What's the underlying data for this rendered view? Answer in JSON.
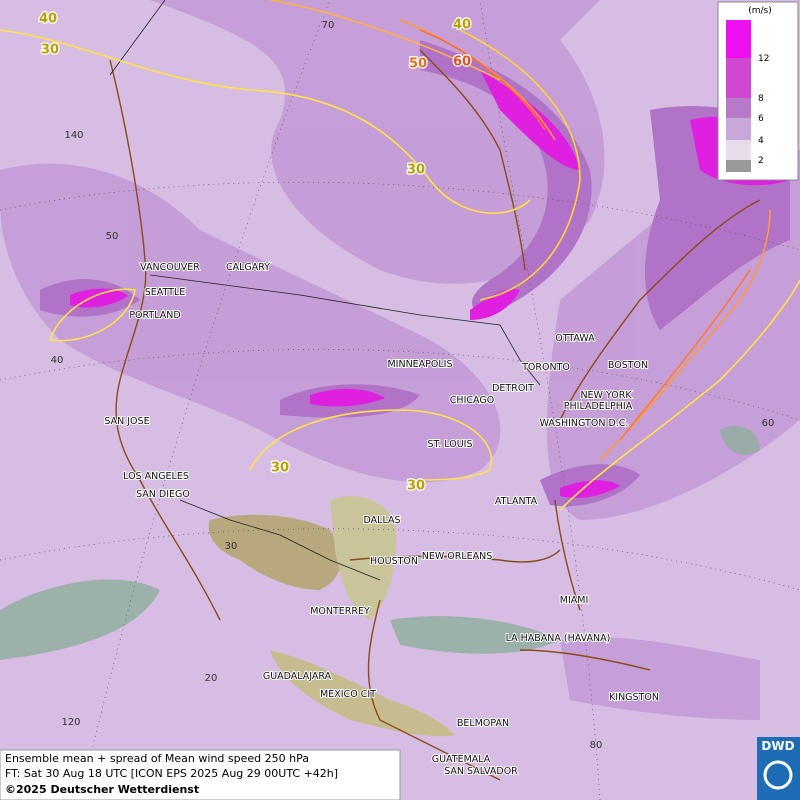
{
  "legend": {
    "unit": "(m/s)",
    "levels": [
      "12",
      "8",
      "6",
      "4",
      "2"
    ]
  },
  "cities": [
    "VANCOUVER",
    "CALGARY",
    "SEATTLE",
    "PORTLAND",
    "MINNEAPOLIS",
    "OTTAWA",
    "TORONTO",
    "DETROIT",
    "BOSTON",
    "CHICAGO",
    "NEW YORK",
    "PHILADELPHIA",
    "WASHINGTON D.C.",
    "SAN JOSE",
    "ST. LOUIS",
    "LOS ANGELES",
    "SAN DIEGO",
    "ATLANTA",
    "DALLAS",
    "HOUSTON",
    "NEW ORLEANS",
    "MONTERREY",
    "MIAMI",
    "LA HABANA (HAVANA)",
    "GUADALAJARA",
    "MEXICO CIT",
    "KINGSTON",
    "BELMOPAN",
    "GUATEMALA",
    "SAN SALVADOR"
  ],
  "contour_labels": [
    "40",
    "30",
    "40",
    "50",
    "60",
    "30",
    "30",
    "30"
  ],
  "graticule_labels": [
    "70",
    "140",
    "50",
    "40",
    "60",
    "30",
    "20",
    "120",
    "80"
  ],
  "footer": {
    "line1": "Ensemble mean + spread of Mean wind speed 250 hPa",
    "line2": "FT: Sat 30 Aug 18 UTC [ICON EPS 2025 Aug 29 00UTC +42h]",
    "copyright": "©2025 Deutscher Wetterdienst"
  },
  "logo": "DWD"
}
